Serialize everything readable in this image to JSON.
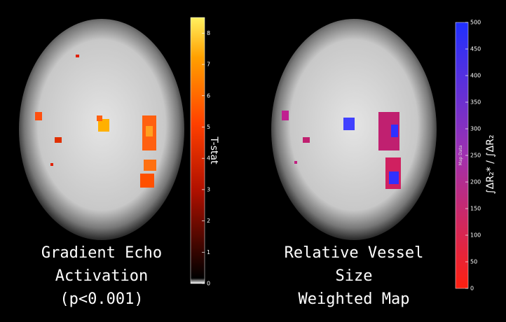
{
  "left_panel": {
    "caption": [
      "Gradient Echo",
      "Activation",
      "(p<0.001)"
    ],
    "colorbar": {
      "label": "T-stat",
      "lim": [
        0,
        8.5
      ],
      "ticks": [
        0,
        1,
        2,
        3,
        4,
        5,
        6,
        7,
        8
      ]
    }
  },
  "right_panel": {
    "caption": [
      "Relative Vessel",
      "Size",
      "Weighted Map"
    ],
    "colorbar": {
      "label": "∫ΔR₂* / ∫ΔR₂",
      "note": "Map Data",
      "lim": [
        0,
        500
      ],
      "ticks": [
        0,
        50,
        100,
        150,
        200,
        250,
        300,
        350,
        400,
        450,
        500
      ]
    }
  }
}
